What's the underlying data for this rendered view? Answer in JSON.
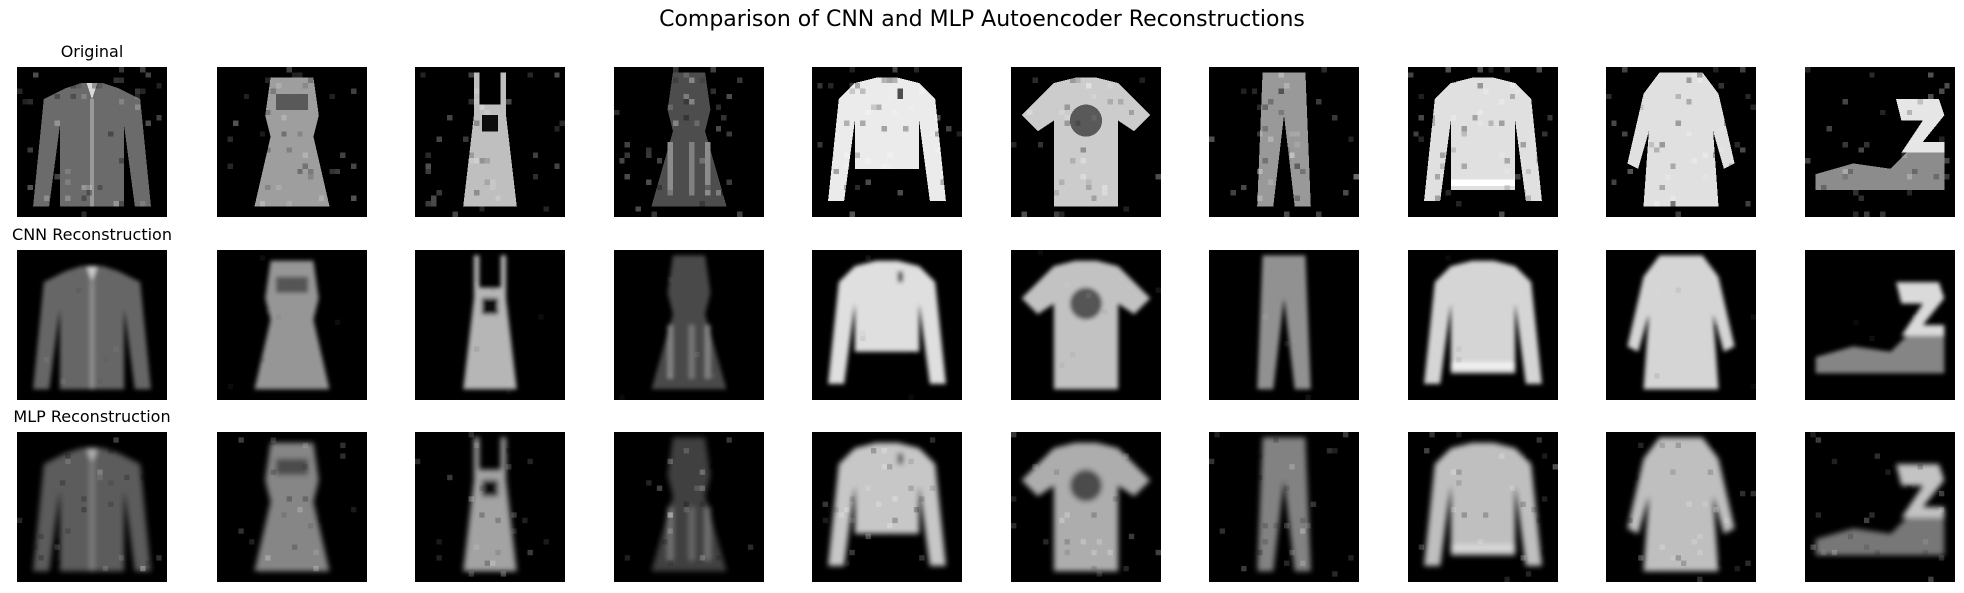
{
  "figure": {
    "title": "Comparison of CNN and MLP Autoencoder Reconstructions",
    "rows": [
      {
        "key": "original",
        "label": "Original",
        "blur": 0,
        "noise": 0.2,
        "brightness": 1.0,
        "speckle": 0.35
      },
      {
        "key": "cnn",
        "label": "CNN Reconstruction",
        "blur": 1.1,
        "noise": 0.05,
        "brightness": 0.95,
        "speckle": 0.05
      },
      {
        "key": "mlp",
        "label": "MLP Reconstruction",
        "blur": 1.4,
        "noise": 0.16,
        "brightness": 0.85,
        "speckle": 0.2
      }
    ],
    "items": [
      {
        "class": "shirt-long-sleeve"
      },
      {
        "class": "dress"
      },
      {
        "class": "overall-dress"
      },
      {
        "class": "dark-dress"
      },
      {
        "class": "long-sleeve-top"
      },
      {
        "class": "t-shirt"
      },
      {
        "class": "trousers"
      },
      {
        "class": "pullover"
      },
      {
        "class": "shirt-dress"
      },
      {
        "class": "sandal"
      }
    ],
    "background_color": "#000000",
    "foreground_color": "#ffffff"
  }
}
